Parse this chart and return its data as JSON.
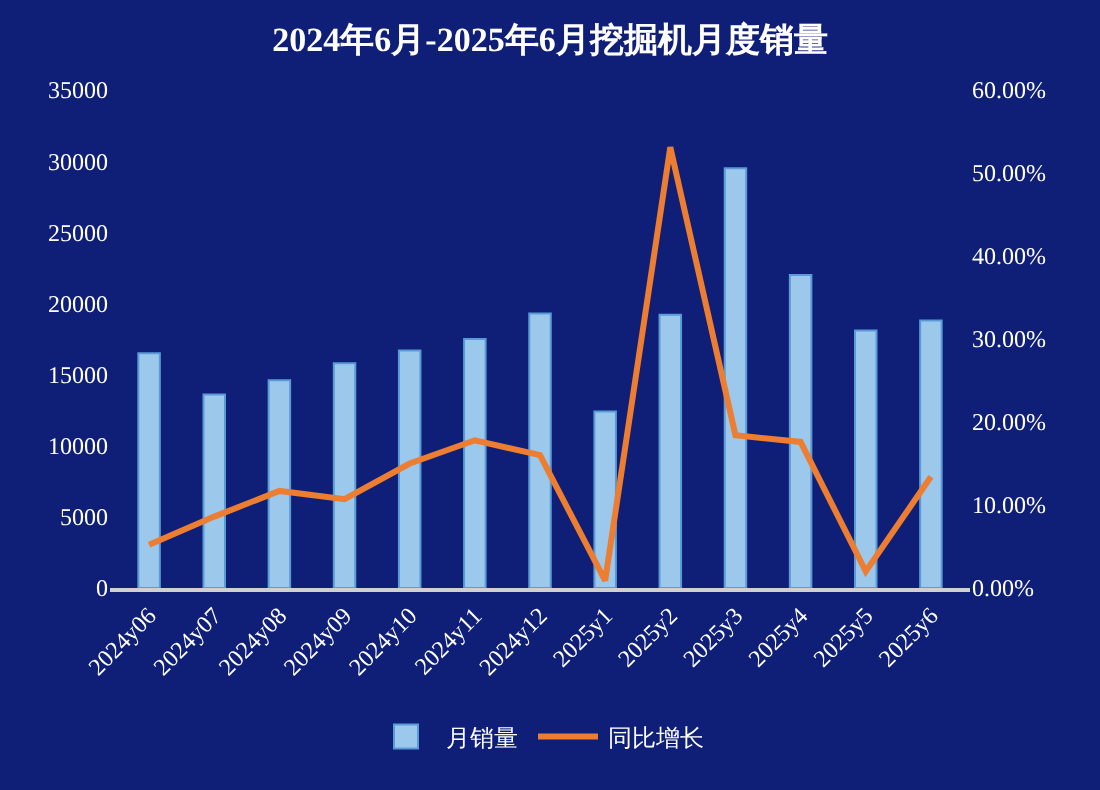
{
  "chart_data": {
    "type": "bar",
    "title": "2024年6月-2025年6月挖掘机月度销量",
    "categories": [
      "2024y06",
      "2024y07",
      "2024y08",
      "2024y09",
      "2024y10",
      "2024y11",
      "2024y12",
      "2025y1",
      "2025y2",
      "2025y3",
      "2025y4",
      "2025y5",
      "2025y6"
    ],
    "series": [
      {
        "name": "月销量",
        "color": "#9cc8ec",
        "values": [
          16500,
          13600,
          14600,
          15800,
          16700,
          17500,
          19300,
          12400,
          19200,
          29500,
          22000,
          18100,
          18800
        ]
      },
      {
        "name": "同比增长",
        "type": "line",
        "axis": "y2",
        "color": "#ed7d31",
        "values": [
          5.2,
          8.6,
          11.7,
          10.7,
          15.0,
          17.8,
          16.0,
          0.9,
          53.1,
          18.4,
          17.6,
          2.0,
          13.4
        ]
      }
    ],
    "ylim": [
      0,
      35000
    ],
    "yticks": [
      0,
      5000,
      10000,
      15000,
      20000,
      25000,
      30000,
      35000
    ],
    "y2lim": [
      0,
      60
    ],
    "y2ticks": [
      {
        "value": 0,
        "label": "0.00%"
      },
      {
        "value": 10,
        "label": "10.00%"
      },
      {
        "value": 20,
        "label": "20.00%"
      },
      {
        "value": 30,
        "label": "30.00%"
      },
      {
        "value": 40,
        "label": "40.00%"
      },
      {
        "value": 50,
        "label": "50.00%"
      },
      {
        "value": 60,
        "label": "60.00%"
      }
    ],
    "grid": false,
    "legend": "bottom",
    "marker": "none",
    "line_style": "solid"
  }
}
